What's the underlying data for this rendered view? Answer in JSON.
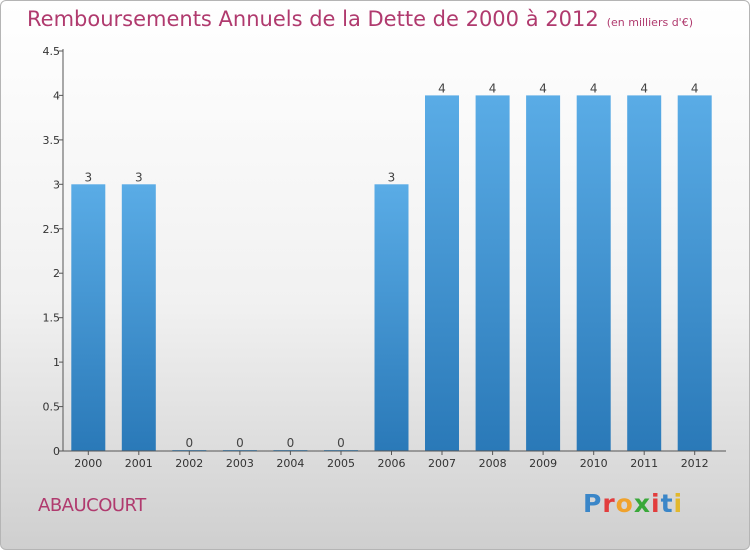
{
  "header": {
    "title": "Remboursements Annuels de la Dette de 2000 à 2012",
    "unit": "(en milliers d'€)"
  },
  "footer": {
    "commune": "ABAUCOURT",
    "logo_text": "Proxiti",
    "logo_colors": [
      "#3a86c8",
      "#e23d3d",
      "#f0a22c",
      "#3aa83a",
      "#e23d3d",
      "#3a86c8",
      "#e2b82c"
    ]
  },
  "chart_data": {
    "type": "bar",
    "title": "Remboursements Annuels de la Dette de 2000 à 2012",
    "xlabel": "",
    "ylabel": "",
    "categories": [
      "2000",
      "2001",
      "2002",
      "2003",
      "2004",
      "2005",
      "2006",
      "2007",
      "2008",
      "2009",
      "2010",
      "2011",
      "2012"
    ],
    "values": [
      3,
      3,
      0,
      0,
      0,
      0,
      3,
      4,
      4,
      4,
      4,
      4,
      4
    ],
    "data_labels": [
      "3",
      "3",
      "0",
      "0",
      "0",
      "0",
      "3",
      "4",
      "4",
      "4",
      "4",
      "4",
      "4"
    ],
    "ylim": [
      0,
      4.5
    ],
    "y_ticks": [
      0,
      0.5,
      1,
      1.5,
      2,
      2.5,
      3,
      3.5,
      4,
      4.5
    ],
    "y_tick_labels": [
      "0",
      "0.5",
      "1",
      "1.5",
      "2",
      "2.5",
      "3",
      "3.5",
      "4",
      "4.5"
    ],
    "bar_color_top": "#5aace6",
    "bar_color_bottom": "#2a79b8",
    "grid": false,
    "legend": "none"
  }
}
